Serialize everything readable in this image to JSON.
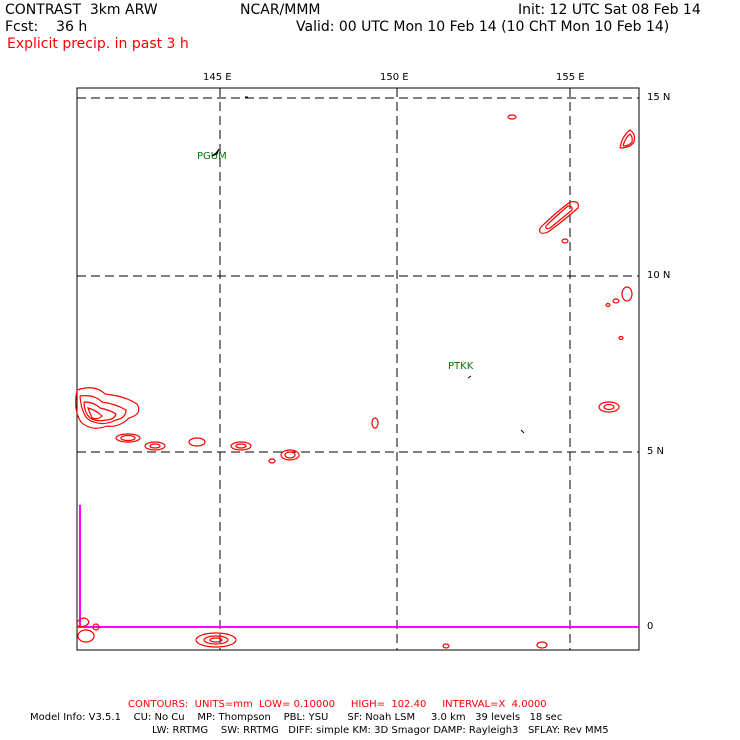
{
  "header": {
    "title": "CONTRAST  3km ARW",
    "center": "NCAR/MMM",
    "init": "Init: 12 UTC Sat 08 Feb 14",
    "fcst": "Fcst:    36 h",
    "valid": "Valid: 00 UTC Mon 10 Feb 14 (10 ChT Mon 10 Feb 14)",
    "field": "Explicit precip. in past 3 h"
  },
  "map": {
    "lon_labels": [
      "145 E",
      "150 E",
      "155 E"
    ],
    "lat_labels": [
      "15 N",
      "10 N",
      "5 N",
      "0"
    ],
    "stations": [
      "PGUM",
      "PTKK"
    ],
    "contour_color": "#ff0000",
    "boundary_color": "#ff00ff",
    "grid": "dashed"
  },
  "footer": {
    "contours": "CONTOURS:  UNITS=mm  LOW= 0.10000     HIGH=  102.40     INTERVAL=X  4.0000",
    "model_line1": "Model Info: V3.5.1    CU: No Cu    MP: Thompson    PBL: YSU      SF: Noah LSM     3.0 km   39 levels   18 sec",
    "model_line2": "LW: RRTMG    SW: RRTMG   DIFF: simple KM: 3D Smagor DAMP: Rayleigh3   SFLAY: Rev MM5"
  }
}
